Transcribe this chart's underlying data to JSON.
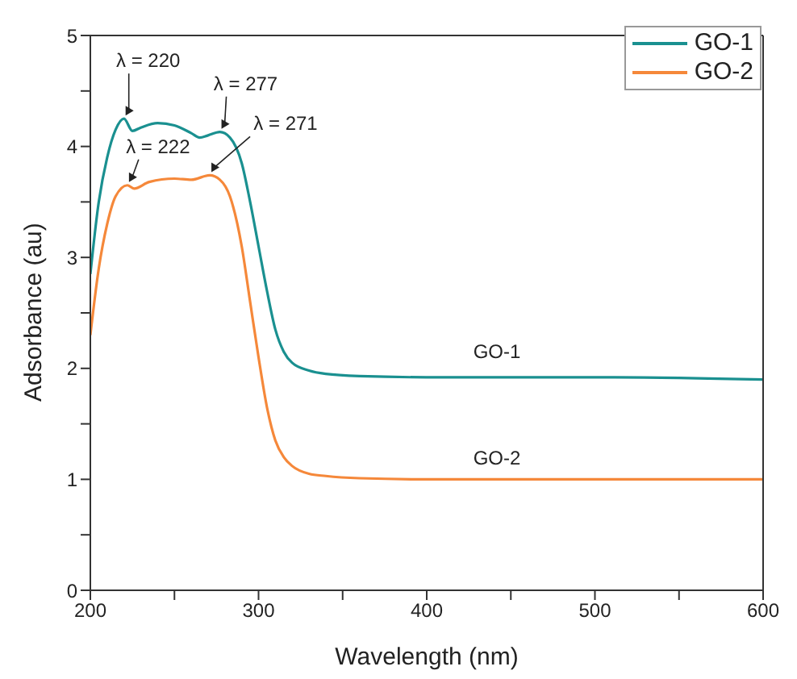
{
  "chart_data": {
    "type": "line",
    "xlabel": "Wavelength (nm)",
    "ylabel": "Adsorbance (au)",
    "xlim": [
      200,
      600
    ],
    "xticks": [
      200,
      {
        "value": 250,
        "label": null
      },
      300,
      {
        "value": 350,
        "label": null
      },
      400,
      {
        "value": 450,
        "label": null
      },
      500,
      {
        "value": 550,
        "label": null
      },
      600
    ],
    "ylim": [
      0,
      5
    ],
    "yticks": [
      0,
      {
        "value": 0.5,
        "label": null
      },
      1,
      {
        "value": 1.5,
        "label": null
      },
      2,
      {
        "value": 2.5,
        "label": null
      },
      3,
      {
        "value": 3.5,
        "label": null
      },
      4,
      {
        "value": 4.5,
        "label": null
      },
      5
    ],
    "legend": "top right",
    "marker": "none",
    "line_style": "solid",
    "series": [
      {
        "name": "GO-1",
        "color": "#1a9090",
        "x": [
          200,
          205,
          210,
          215,
          220,
          225,
          230,
          240,
          250,
          260,
          265,
          270,
          277,
          283,
          290,
          295,
          300,
          305,
          310,
          315,
          320,
          330,
          340,
          360,
          400,
          500,
          600
        ],
        "values": [
          2.85,
          3.5,
          3.9,
          4.15,
          4.25,
          4.14,
          4.17,
          4.21,
          4.19,
          4.12,
          4.08,
          4.1,
          4.13,
          4.08,
          3.85,
          3.5,
          3.1,
          2.7,
          2.35,
          2.15,
          2.05,
          1.98,
          1.95,
          1.93,
          1.92,
          1.92,
          1.9
        ]
      },
      {
        "name": "GO-2",
        "color": "#f5883a",
        "x": [
          200,
          205,
          210,
          215,
          222,
          226,
          235,
          250,
          260,
          271,
          277,
          283,
          290,
          295,
          300,
          305,
          310,
          315,
          320,
          330,
          340,
          360,
          400,
          500,
          600
        ],
        "values": [
          2.3,
          2.9,
          3.3,
          3.55,
          3.65,
          3.62,
          3.68,
          3.71,
          3.7,
          3.74,
          3.7,
          3.55,
          3.1,
          2.6,
          2.1,
          1.65,
          1.35,
          1.2,
          1.12,
          1.05,
          1.03,
          1.01,
          1.0,
          1.0,
          1.0
        ]
      }
    ],
    "annotations": [
      {
        "text": "λ = 220",
        "x": 220,
        "y": 4.25
      },
      {
        "text": "λ = 277",
        "x": 277,
        "y": 4.13
      },
      {
        "text": "λ = 222",
        "x": 222,
        "y": 3.65
      },
      {
        "text": "λ = 271",
        "x": 271,
        "y": 3.74
      },
      "GO-1",
      "GO-2"
    ]
  }
}
